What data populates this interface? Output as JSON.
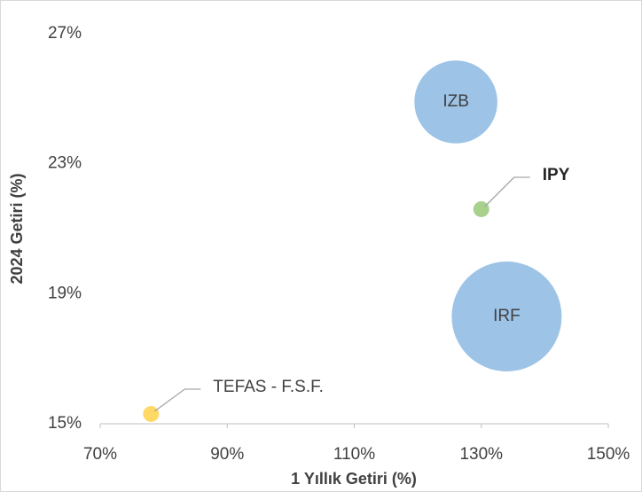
{
  "chart_data": {
    "type": "bubble",
    "xlabel": "1 Yıllık Getiri (%)",
    "ylabel": "2024 Getiri (%)",
    "xlim": [
      70,
      150
    ],
    "xticks": [
      {
        "value": 70,
        "label": "70%"
      },
      {
        "value": 90,
        "label": "90%"
      },
      {
        "value": 110,
        "label": "110%"
      },
      {
        "value": 130,
        "label": "130%"
      },
      {
        "value": 150,
        "label": "150%"
      }
    ],
    "ylim": [
      15,
      27
    ],
    "yticks": [
      {
        "value": 15,
        "label": "15%"
      },
      {
        "value": 19,
        "label": "19%"
      },
      {
        "value": 23,
        "label": "23%"
      },
      {
        "value": 27,
        "label": "27%"
      }
    ],
    "grid": false,
    "series": [
      {
        "name": "IZB",
        "color": "#9dc3e6",
        "x": [
          126
        ],
        "values": [
          24.9
        ],
        "sizes": [
          57
        ]
      },
      {
        "name": "IPY",
        "color": "#a9d18e",
        "x": [
          130
        ],
        "values": [
          21.6
        ],
        "sizes": [
          2.1
        ]
      },
      {
        "name": "IRF",
        "color": "#9dc3e6",
        "x": [
          134
        ],
        "values": [
          18.3
        ],
        "sizes": [
          100
        ]
      },
      {
        "name": "TEFAS - F.S.F.",
        "color": "#ffd966",
        "x": [
          78
        ],
        "values": [
          15.3
        ],
        "sizes": [
          2.1
        ]
      }
    ]
  }
}
